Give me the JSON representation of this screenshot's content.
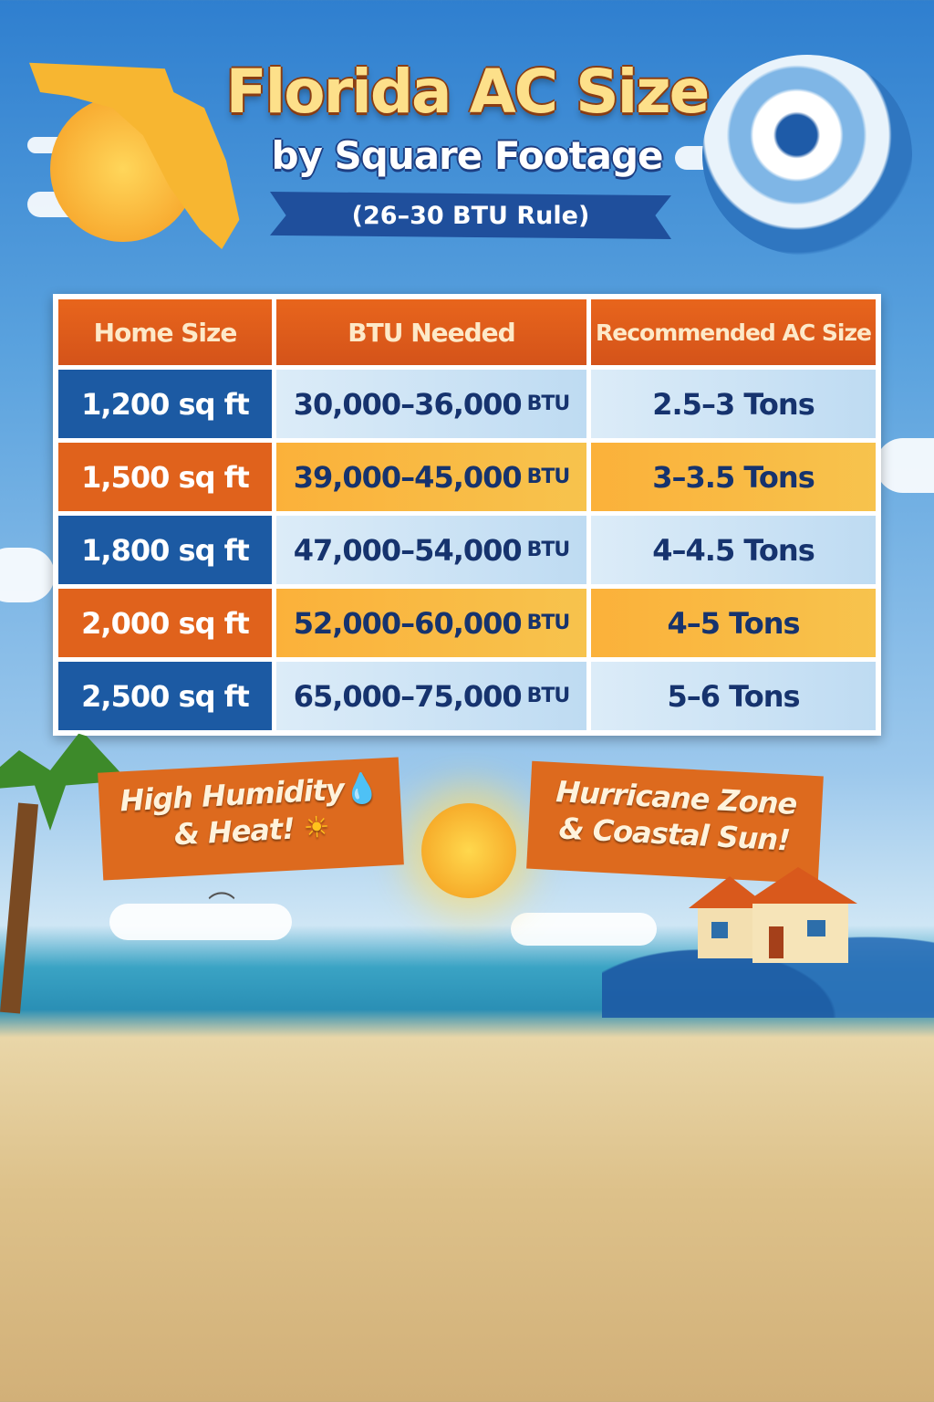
{
  "header": {
    "title": "Florida AC Size",
    "subtitle": "by Square Footage",
    "rule": "(26–30 BTU Rule)"
  },
  "table": {
    "columns": [
      "Home Size",
      "BTU Needed",
      "Recommended AC Size"
    ],
    "rows": [
      {
        "size": "1,200 sq ft",
        "btu": "30,000–36,000",
        "unit": "BTU",
        "ac": "2.5–3 Tons"
      },
      {
        "size": "1,500 sq ft",
        "btu": "39,000–45,000",
        "unit": "BTU",
        "ac": "3–3.5 Tons"
      },
      {
        "size": "1,800 sq ft",
        "btu": "47,000–54,000",
        "unit": "BTU",
        "ac": "4–4.5 Tons"
      },
      {
        "size": "2,000 sq ft",
        "btu": "52,000–60,000",
        "unit": "BTU",
        "ac": "4–5 Tons"
      },
      {
        "size": "2,500 sq ft",
        "btu": "65,000–75,000",
        "unit": "BTU",
        "ac": "5–6 Tons"
      }
    ]
  },
  "banners": {
    "left_line1": "High Humidity",
    "left_line2": "& Heat!",
    "right_line1": "Hurricane Zone",
    "right_line2": "& Coastal Sun!"
  },
  "colors": {
    "orange": "#e0621c",
    "blue": "#1c5aa3",
    "navy_text": "#16336e",
    "title_gold": "#fde08a"
  },
  "icons": [
    "florida-map-icon",
    "palm-tree-icon",
    "hurricane-icon",
    "sun-icon",
    "water-drop-icon",
    "house-icon",
    "wave-icon",
    "seagull-icon"
  ]
}
